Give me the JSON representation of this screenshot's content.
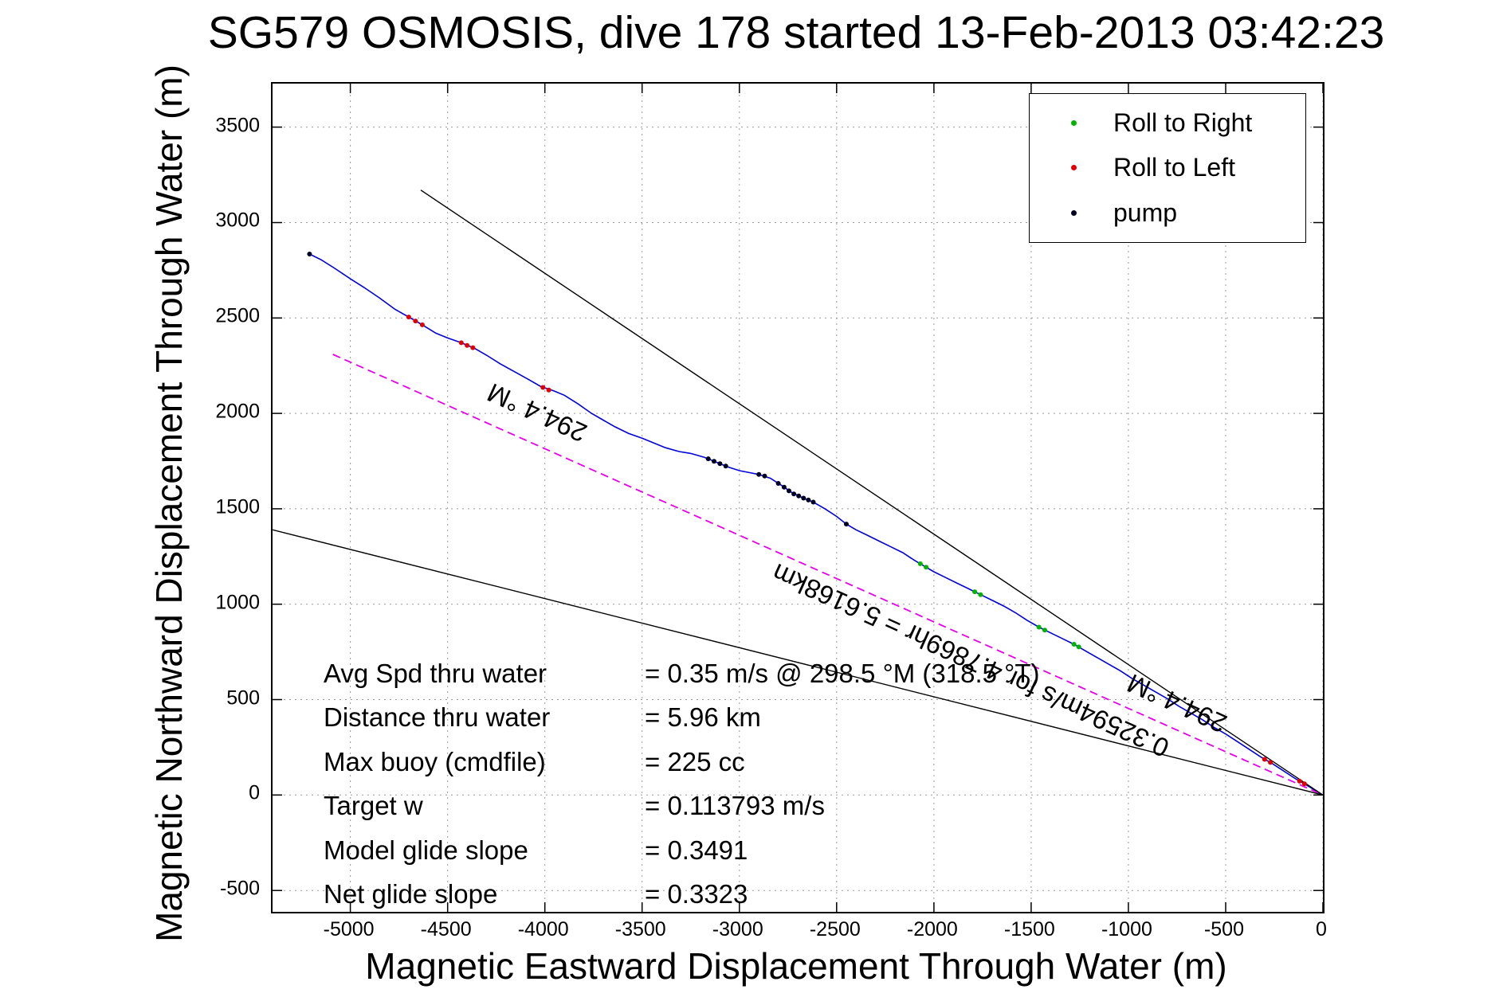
{
  "chart_data": {
    "type": "line",
    "title": "SG579 OSMOSIS, dive 178 started 13-Feb-2013 03:42:23",
    "xlabel": "Magnetic Eastward Displacement Through Water (m)",
    "ylabel": "Magnetic Northward Displacement Through Water (m)",
    "xlim": [
      -5400,
      0
    ],
    "ylim": [
      -612,
      3728
    ],
    "xticks": [
      -5000,
      -4500,
      -4000,
      -3500,
      -3000,
      -2500,
      -2000,
      -1500,
      -1000,
      -500,
      0
    ],
    "yticks": [
      -500,
      0,
      500,
      1000,
      1500,
      2000,
      2500,
      3000,
      3500
    ],
    "grid": true,
    "legend": {
      "position": "top-right",
      "entries": [
        {
          "label": "Roll to Right",
          "color": "#00b300",
          "marker": "dot"
        },
        {
          "label": "Roll to Left",
          "color": "#e00000",
          "marker": "dot"
        },
        {
          "label": "pump",
          "color": "#000022",
          "marker": "dot"
        }
      ]
    },
    "series": [
      {
        "name": "track-through-water",
        "color": "#0000dd",
        "style": "solid",
        "width": 1.6,
        "points": [
          [
            -5210,
            2835
          ],
          [
            -5150,
            2805
          ],
          [
            -5080,
            2760
          ],
          [
            -5000,
            2705
          ],
          [
            -4930,
            2660
          ],
          [
            -4850,
            2605
          ],
          [
            -4770,
            2545
          ],
          [
            -4700,
            2505
          ],
          [
            -4640,
            2470
          ],
          [
            -4560,
            2420
          ],
          [
            -4500,
            2395
          ],
          [
            -4430,
            2370
          ],
          [
            -4360,
            2340
          ],
          [
            -4300,
            2305
          ],
          [
            -4230,
            2260
          ],
          [
            -4150,
            2215
          ],
          [
            -4080,
            2175
          ],
          [
            -4020,
            2140
          ],
          [
            -3960,
            2120
          ],
          [
            -3900,
            2095
          ],
          [
            -3830,
            2050
          ],
          [
            -3760,
            2000
          ],
          [
            -3700,
            1965
          ],
          [
            -3640,
            1930
          ],
          [
            -3570,
            1895
          ],
          [
            -3500,
            1870
          ],
          [
            -3440,
            1845
          ],
          [
            -3380,
            1820
          ],
          [
            -3310,
            1800
          ],
          [
            -3250,
            1790
          ],
          [
            -3180,
            1770
          ],
          [
            -3120,
            1745
          ],
          [
            -3060,
            1720
          ],
          [
            -3000,
            1700
          ],
          [
            -2950,
            1690
          ],
          [
            -2900,
            1680
          ],
          [
            -2840,
            1660
          ],
          [
            -2780,
            1620
          ],
          [
            -2730,
            1585
          ],
          [
            -2680,
            1560
          ],
          [
            -2620,
            1535
          ],
          [
            -2560,
            1500
          ],
          [
            -2500,
            1460
          ],
          [
            -2450,
            1420
          ],
          [
            -2400,
            1390
          ],
          [
            -2340,
            1360
          ],
          [
            -2280,
            1330
          ],
          [
            -2220,
            1300
          ],
          [
            -2160,
            1270
          ],
          [
            -2100,
            1230
          ],
          [
            -2050,
            1200
          ],
          [
            -2000,
            1170
          ],
          [
            -1940,
            1140
          ],
          [
            -1880,
            1110
          ],
          [
            -1820,
            1080
          ],
          [
            -1760,
            1050
          ],
          [
            -1700,
            1020
          ],
          [
            -1640,
            990
          ],
          [
            -1580,
            955
          ],
          [
            -1520,
            915
          ],
          [
            -1460,
            880
          ],
          [
            -1400,
            850
          ],
          [
            -1340,
            820
          ],
          [
            -1280,
            790
          ],
          [
            -1220,
            755
          ],
          [
            -1160,
            720
          ],
          [
            -1100,
            685
          ],
          [
            -1040,
            650
          ],
          [
            -980,
            610
          ],
          [
            -920,
            575
          ],
          [
            -860,
            540
          ],
          [
            -800,
            505
          ],
          [
            -740,
            465
          ],
          [
            -680,
            430
          ],
          [
            -620,
            395
          ],
          [
            -560,
            355
          ],
          [
            -500,
            320
          ],
          [
            -440,
            280
          ],
          [
            -380,
            240
          ],
          [
            -320,
            200
          ],
          [
            -260,
            165
          ],
          [
            -200,
            125
          ],
          [
            -140,
            85
          ],
          [
            -80,
            50
          ],
          [
            -30,
            18
          ],
          [
            0,
            0
          ]
        ]
      },
      {
        "name": "desired-track",
        "color": "#e800e8",
        "style": "dashed",
        "width": 1.8,
        "points": [
          [
            -5090,
            2309
          ],
          [
            0,
            0
          ]
        ]
      },
      {
        "name": "bearing-upper-bound",
        "color": "#000000",
        "style": "solid",
        "width": 1.4,
        "points": [
          [
            -4638,
            3170
          ],
          [
            0,
            0
          ]
        ]
      },
      {
        "name": "bearing-lower-bound",
        "color": "#000000",
        "style": "solid",
        "width": 1.4,
        "points": [
          [
            -5400,
            1390
          ],
          [
            0,
            0
          ]
        ]
      }
    ],
    "markers": [
      {
        "name": "roll-to-right",
        "color": "#00b300",
        "size": 3,
        "points": [
          [
            -2070,
            1212
          ],
          [
            -2040,
            1194
          ],
          [
            -1790,
            1065
          ],
          [
            -1760,
            1050
          ],
          [
            -1460,
            880
          ],
          [
            -1430,
            864
          ],
          [
            -1280,
            790
          ],
          [
            -1255,
            776
          ]
        ]
      },
      {
        "name": "roll-to-left",
        "color": "#e00000",
        "size": 3,
        "points": [
          [
            -4700,
            2505
          ],
          [
            -4665,
            2484
          ],
          [
            -4630,
            2464
          ],
          [
            -4430,
            2370
          ],
          [
            -4400,
            2356
          ],
          [
            -4370,
            2344
          ],
          [
            -4010,
            2136
          ],
          [
            -3980,
            2122
          ],
          [
            -300,
            187
          ],
          [
            -270,
            171
          ],
          [
            -120,
            73
          ],
          [
            -95,
            59
          ]
        ]
      },
      {
        "name": "pump",
        "color": "#000022",
        "size": 3,
        "points": [
          [
            -5210,
            2835
          ],
          [
            -3160,
            1762
          ],
          [
            -3130,
            1749
          ],
          [
            -3100,
            1736
          ],
          [
            -3070,
            1724
          ],
          [
            -2900,
            1680
          ],
          [
            -2870,
            1672
          ],
          [
            -2800,
            1633
          ],
          [
            -2770,
            1613
          ],
          [
            -2745,
            1594
          ],
          [
            -2720,
            1578
          ],
          [
            -2695,
            1567
          ],
          [
            -2670,
            1556
          ],
          [
            -2645,
            1546
          ],
          [
            -2620,
            1535
          ],
          [
            -2450,
            1420
          ]
        ]
      }
    ],
    "annotations": [
      {
        "text": "294.4 °M",
        "x": -4040,
        "y": 2005,
        "rotation_deg": 204.4
      },
      {
        "text": "0.32594m/s for 4.7869hr = 5.6168km",
        "x": -1810,
        "y": 705,
        "rotation_deg": 204.4
      },
      {
        "text": "294.4 °M",
        "x": -750,
        "y": 480,
        "rotation_deg": 204.4
      }
    ],
    "stats": [
      {
        "label": "Avg Spd thru water",
        "value": "=  0.35 m/s @ 298.5 °M (318.5 °T)"
      },
      {
        "label": "Distance thru water",
        "value": "=  5.96 km"
      },
      {
        "label": "Max buoy (cmdfile)",
        "value": "= 225 cc"
      },
      {
        "label": "Target w",
        "value": "= 0.113793 m/s"
      },
      {
        "label": "Model glide slope",
        "value": "= 0.3491"
      },
      {
        "label": "Net glide slope",
        "value": "= 0.3323"
      }
    ]
  }
}
